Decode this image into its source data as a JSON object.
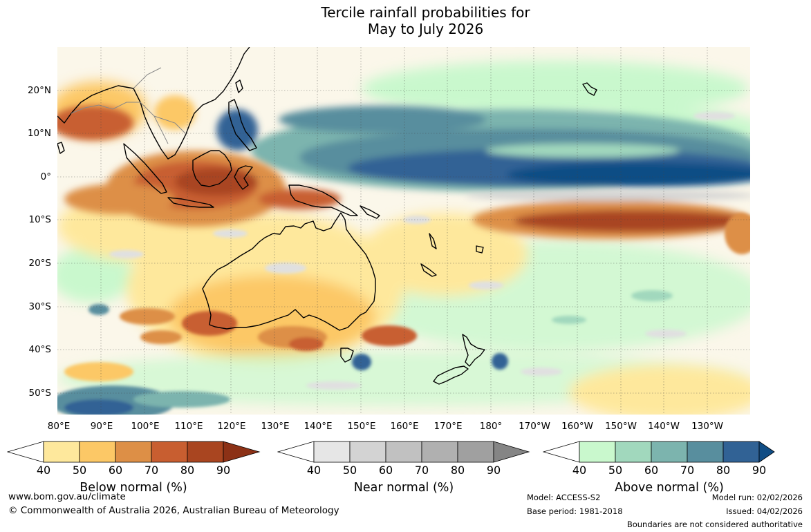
{
  "title": {
    "line1": "Tercile rainfall probabilities for",
    "line2": "May to July 2026"
  },
  "map": {
    "lat_labels": [
      "20°N",
      "10°N",
      "0°",
      "10°S",
      "20°S",
      "30°S",
      "40°S",
      "50°S"
    ],
    "lon_labels": [
      "80°E",
      "90°E",
      "100°E",
      "110°E",
      "120°E",
      "130°E",
      "140°E",
      "150°E",
      "160°E",
      "170°E",
      "180°",
      "170°W",
      "160°W",
      "150°W",
      "140°W",
      "130°W"
    ]
  },
  "colorbars": [
    {
      "name": "below",
      "label": "Below normal (%)",
      "ticks": [
        "40",
        "50",
        "60",
        "70",
        "80",
        "90"
      ],
      "colors": [
        "#ffffff",
        "#fee89c",
        "#fcc866",
        "#dd8f46",
        "#c85e30",
        "#a94520",
        "#8c3116"
      ]
    },
    {
      "name": "near",
      "label": "Near normal (%)",
      "ticks": [
        "40",
        "50",
        "60",
        "70",
        "80",
        "90"
      ],
      "colors": [
        "#ffffff",
        "#e6e6e6",
        "#d3d3d3",
        "#c1c1c1",
        "#b0b0b0",
        "#a0a0a0",
        "#858585"
      ]
    },
    {
      "name": "above",
      "label": "Above normal (%)",
      "ticks": [
        "40",
        "50",
        "60",
        "70",
        "80",
        "90"
      ],
      "colors": [
        "#ffffff",
        "#c9f8cd",
        "#a1d8bd",
        "#7cb4ae",
        "#588e9e",
        "#316295",
        "#104d85"
      ]
    }
  ],
  "footer": {
    "url": "www.bom.gov.au/climate",
    "copyright": "© Commonwealth of Australia 2026, Australian Bureau of Meteorology",
    "model": "Model: ACCESS-S2",
    "base_period": "Base period: 1981-2018",
    "model_run": "Model run: 02/02/2026",
    "issued": "Issued: 04/02/2026",
    "disclaimer": "Boundaries are not considered authoritative"
  }
}
